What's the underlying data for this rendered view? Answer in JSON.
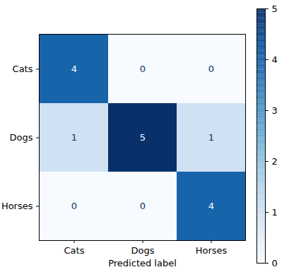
{
  "chart_data": {
    "type": "heatmap",
    "xlabel": "Predicted label",
    "x_categories": [
      "Cats",
      "Dogs",
      "Horses"
    ],
    "y_categories": [
      "Cats",
      "Dogs",
      "Horses"
    ],
    "cells": [
      [
        4,
        0,
        0
      ],
      [
        1,
        5,
        1
      ],
      [
        0,
        0,
        4
      ]
    ],
    "data_labels": true,
    "colorbar_range": [
      0,
      5
    ],
    "colorbar_ticks": [
      0,
      1,
      2,
      3,
      4,
      5
    ]
  }
}
